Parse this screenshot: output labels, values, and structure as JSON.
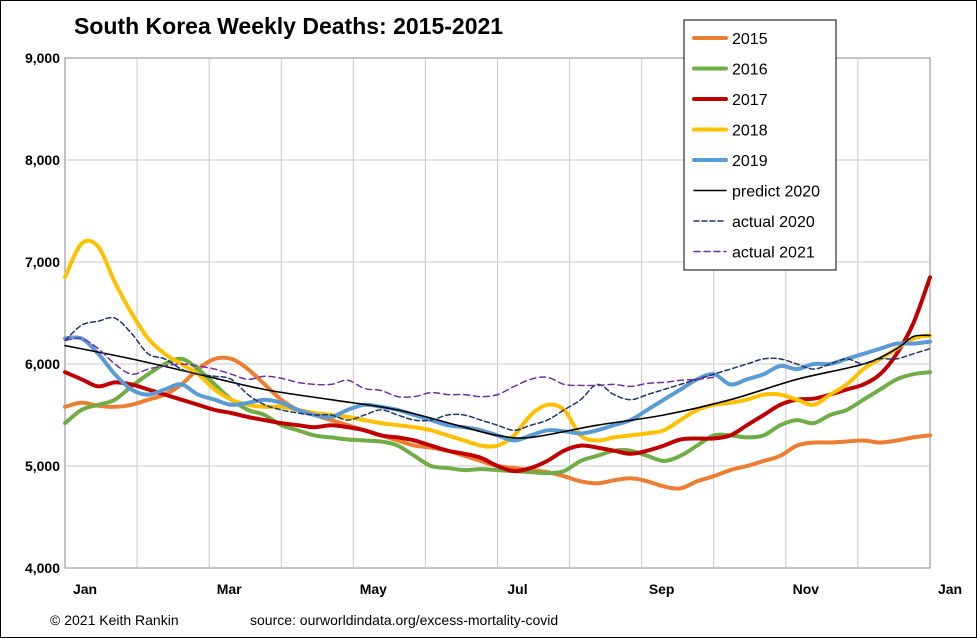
{
  "chart_data": {
    "type": "line",
    "title": "South Korea Weekly Deaths: 2015-2021",
    "xlabel": "",
    "ylabel": "",
    "x_ticks": [
      "Jan",
      "Mar",
      "May",
      "Jul",
      "Sep",
      "Nov",
      "Jan"
    ],
    "xlim": [
      0,
      52
    ],
    "ylim": [
      4000,
      9000
    ],
    "y_ticks": [
      "4,000",
      "5,000",
      "6,000",
      "7,000",
      "8,000",
      "9,000"
    ],
    "y_tick_values": [
      4000,
      5000,
      6000,
      7000,
      8000,
      9000
    ],
    "grid": true,
    "legend_position": "top-right",
    "series": [
      {
        "name": "2015",
        "color": "#ED7D31",
        "style": "thick",
        "x": [
          0,
          1,
          2,
          3,
          4,
          5,
          6,
          7,
          8,
          9,
          10,
          11,
          12,
          13,
          14,
          15,
          16,
          17,
          18,
          19,
          20,
          21,
          22,
          23,
          24,
          25,
          26,
          27,
          28,
          29,
          30,
          31,
          32,
          33,
          34,
          35,
          36,
          37,
          38,
          39,
          40,
          41,
          42,
          43,
          44,
          45,
          46,
          47,
          48,
          49,
          50,
          51,
          52
        ],
        "values": [
          5580,
          5620,
          5590,
          5580,
          5600,
          5650,
          5700,
          5800,
          5950,
          6050,
          6050,
          5950,
          5800,
          5650,
          5550,
          5500,
          5450,
          5400,
          5350,
          5300,
          5250,
          5200,
          5180,
          5150,
          5100,
          5050,
          5000,
          4980,
          4960,
          4940,
          4900,
          4850,
          4830,
          4860,
          4880,
          4850,
          4800,
          4780,
          4850,
          4900,
          4960,
          5000,
          5050,
          5100,
          5200,
          5230,
          5230,
          5240,
          5250,
          5230,
          5250,
          5280,
          5300
        ]
      },
      {
        "name": "2016",
        "color": "#70AD47",
        "style": "thick",
        "x": [
          0,
          1,
          2,
          3,
          4,
          5,
          6,
          7,
          8,
          9,
          10,
          11,
          12,
          13,
          14,
          15,
          16,
          17,
          18,
          19,
          20,
          21,
          22,
          23,
          24,
          25,
          26,
          27,
          28,
          29,
          30,
          31,
          32,
          33,
          34,
          35,
          36,
          37,
          38,
          39,
          40,
          41,
          42,
          43,
          44,
          45,
          46,
          47,
          48,
          49,
          50,
          51,
          52
        ],
        "values": [
          5420,
          5550,
          5600,
          5650,
          5780,
          5900,
          6000,
          6050,
          5950,
          5800,
          5650,
          5550,
          5500,
          5400,
          5350,
          5300,
          5280,
          5260,
          5250,
          5240,
          5200,
          5100,
          5000,
          4980,
          4960,
          4970,
          4960,
          4950,
          4940,
          4930,
          4950,
          5050,
          5100,
          5150,
          5150,
          5100,
          5050,
          5100,
          5200,
          5300,
          5300,
          5280,
          5300,
          5400,
          5450,
          5420,
          5500,
          5550,
          5650,
          5750,
          5850,
          5900,
          5920
        ]
      },
      {
        "name": "2017",
        "color": "#C00000",
        "style": "thick",
        "x": [
          0,
          1,
          2,
          3,
          4,
          5,
          6,
          7,
          8,
          9,
          10,
          11,
          12,
          13,
          14,
          15,
          16,
          17,
          18,
          19,
          20,
          21,
          22,
          23,
          24,
          25,
          26,
          27,
          28,
          29,
          30,
          31,
          32,
          33,
          34,
          35,
          36,
          37,
          38,
          39,
          40,
          41,
          42,
          43,
          44,
          45,
          46,
          47,
          48,
          49,
          50,
          51,
          52
        ],
        "values": [
          5920,
          5850,
          5780,
          5820,
          5800,
          5750,
          5700,
          5650,
          5600,
          5550,
          5520,
          5480,
          5450,
          5420,
          5400,
          5380,
          5400,
          5380,
          5350,
          5300,
          5280,
          5250,
          5200,
          5150,
          5120,
          5080,
          5000,
          4950,
          4980,
          5050,
          5150,
          5200,
          5180,
          5150,
          5120,
          5150,
          5200,
          5260,
          5270,
          5270,
          5300,
          5400,
          5500,
          5600,
          5650,
          5660,
          5700,
          5750,
          5800,
          5900,
          6100,
          6400,
          6850
        ]
      },
      {
        "name": "2018",
        "color": "#FFC000",
        "style": "thick",
        "x": [
          0,
          1,
          2,
          3,
          4,
          5,
          6,
          7,
          8,
          9,
          10,
          11,
          12,
          13,
          14,
          15,
          16,
          17,
          18,
          19,
          20,
          21,
          22,
          23,
          24,
          25,
          26,
          27,
          28,
          29,
          30,
          31,
          32,
          33,
          34,
          35,
          36,
          37,
          38,
          39,
          40,
          41,
          42,
          43,
          44,
          45,
          46,
          47,
          48,
          49,
          50,
          51,
          52
        ],
        "values": [
          6850,
          7180,
          7150,
          6800,
          6500,
          6250,
          6100,
          6000,
          5900,
          5750,
          5650,
          5600,
          5580,
          5580,
          5550,
          5520,
          5500,
          5480,
          5450,
          5420,
          5400,
          5380,
          5350,
          5300,
          5250,
          5200,
          5200,
          5300,
          5500,
          5600,
          5550,
          5300,
          5250,
          5280,
          5300,
          5320,
          5350,
          5450,
          5550,
          5600,
          5620,
          5650,
          5700,
          5700,
          5650,
          5600,
          5700,
          5800,
          5950,
          6050,
          6150,
          6250,
          6280
        ]
      },
      {
        "name": "2019",
        "color": "#5B9BD5",
        "style": "thick",
        "x": [
          0,
          1,
          2,
          3,
          4,
          5,
          6,
          7,
          8,
          9,
          10,
          11,
          12,
          13,
          14,
          15,
          16,
          17,
          18,
          19,
          20,
          21,
          22,
          23,
          24,
          25,
          26,
          27,
          28,
          29,
          30,
          31,
          32,
          33,
          34,
          35,
          36,
          37,
          38,
          39,
          40,
          41,
          42,
          43,
          44,
          45,
          46,
          47,
          48,
          49,
          50,
          51,
          52
        ],
        "values": [
          6250,
          6250,
          6100,
          5900,
          5750,
          5700,
          5750,
          5800,
          5700,
          5650,
          5600,
          5620,
          5650,
          5620,
          5550,
          5500,
          5480,
          5550,
          5600,
          5580,
          5550,
          5500,
          5450,
          5400,
          5380,
          5350,
          5300,
          5250,
          5300,
          5350,
          5340,
          5320,
          5350,
          5400,
          5450,
          5550,
          5650,
          5750,
          5850,
          5900,
          5800,
          5850,
          5900,
          5980,
          5950,
          6000,
          6000,
          6050,
          6100,
          6150,
          6200,
          6200,
          6220
        ]
      },
      {
        "name": "predict 2020",
        "color": "#000000",
        "style": "solid-thin",
        "x": [
          0,
          4,
          8,
          12,
          16,
          20,
          24,
          26,
          28,
          32,
          36,
          40,
          44,
          48,
          50,
          51,
          52
        ],
        "values": [
          6180,
          6050,
          5900,
          5750,
          5650,
          5550,
          5380,
          5300,
          5280,
          5400,
          5500,
          5650,
          5850,
          6000,
          6150,
          6270,
          6280
        ]
      },
      {
        "name": "actual 2020",
        "color": "#1F3864",
        "style": "dashed-dark",
        "x": [
          0,
          1,
          2,
          3,
          4,
          5,
          6,
          7,
          8,
          9,
          10,
          11,
          12,
          13,
          14,
          15,
          16,
          17,
          18,
          19,
          20,
          21,
          22,
          23,
          24,
          25,
          26,
          27,
          28,
          29,
          30,
          31,
          32,
          33,
          34,
          35,
          36,
          37,
          38,
          39,
          40,
          41,
          42,
          43,
          44,
          45,
          46,
          47,
          48,
          49,
          50,
          51,
          52
        ],
        "values": [
          6230,
          6380,
          6420,
          6450,
          6300,
          6100,
          6050,
          5950,
          5900,
          5880,
          5850,
          5700,
          5600,
          5550,
          5520,
          5500,
          5500,
          5450,
          5500,
          5550,
          5500,
          5450,
          5450,
          5500,
          5500,
          5450,
          5400,
          5350,
          5400,
          5450,
          5550,
          5650,
          5800,
          5700,
          5650,
          5700,
          5750,
          5800,
          5850,
          5900,
          5950,
          6000,
          6050,
          6050,
          6000,
          5950,
          6000,
          6050,
          6000,
          6050,
          6050,
          6100,
          6150
        ]
      },
      {
        "name": "actual 2021",
        "color": "#7030A0",
        "style": "dashed-purple",
        "x": [
          0,
          1,
          2,
          3,
          4,
          5,
          6,
          7,
          8,
          9,
          10,
          11,
          12,
          13,
          14,
          15,
          16,
          17,
          18,
          19,
          20,
          21,
          22,
          23,
          24,
          25,
          26,
          27,
          28,
          29,
          30,
          31,
          32,
          33,
          34,
          35,
          36,
          37,
          38,
          39
        ],
        "values": [
          6230,
          6250,
          6150,
          6000,
          5900,
          5950,
          5980,
          6000,
          5980,
          5950,
          5900,
          5850,
          5880,
          5860,
          5820,
          5800,
          5800,
          5840,
          5760,
          5740,
          5680,
          5680,
          5720,
          5700,
          5700,
          5680,
          5700,
          5780,
          5850,
          5870,
          5800,
          5790,
          5790,
          5800,
          5780,
          5810,
          5820,
          5840,
          5850,
          5870
        ]
      }
    ]
  },
  "footer": {
    "copyright": "© 2021 Keith Rankin",
    "source": "source:  ourworldindata.org/excess-mortality-covid"
  }
}
